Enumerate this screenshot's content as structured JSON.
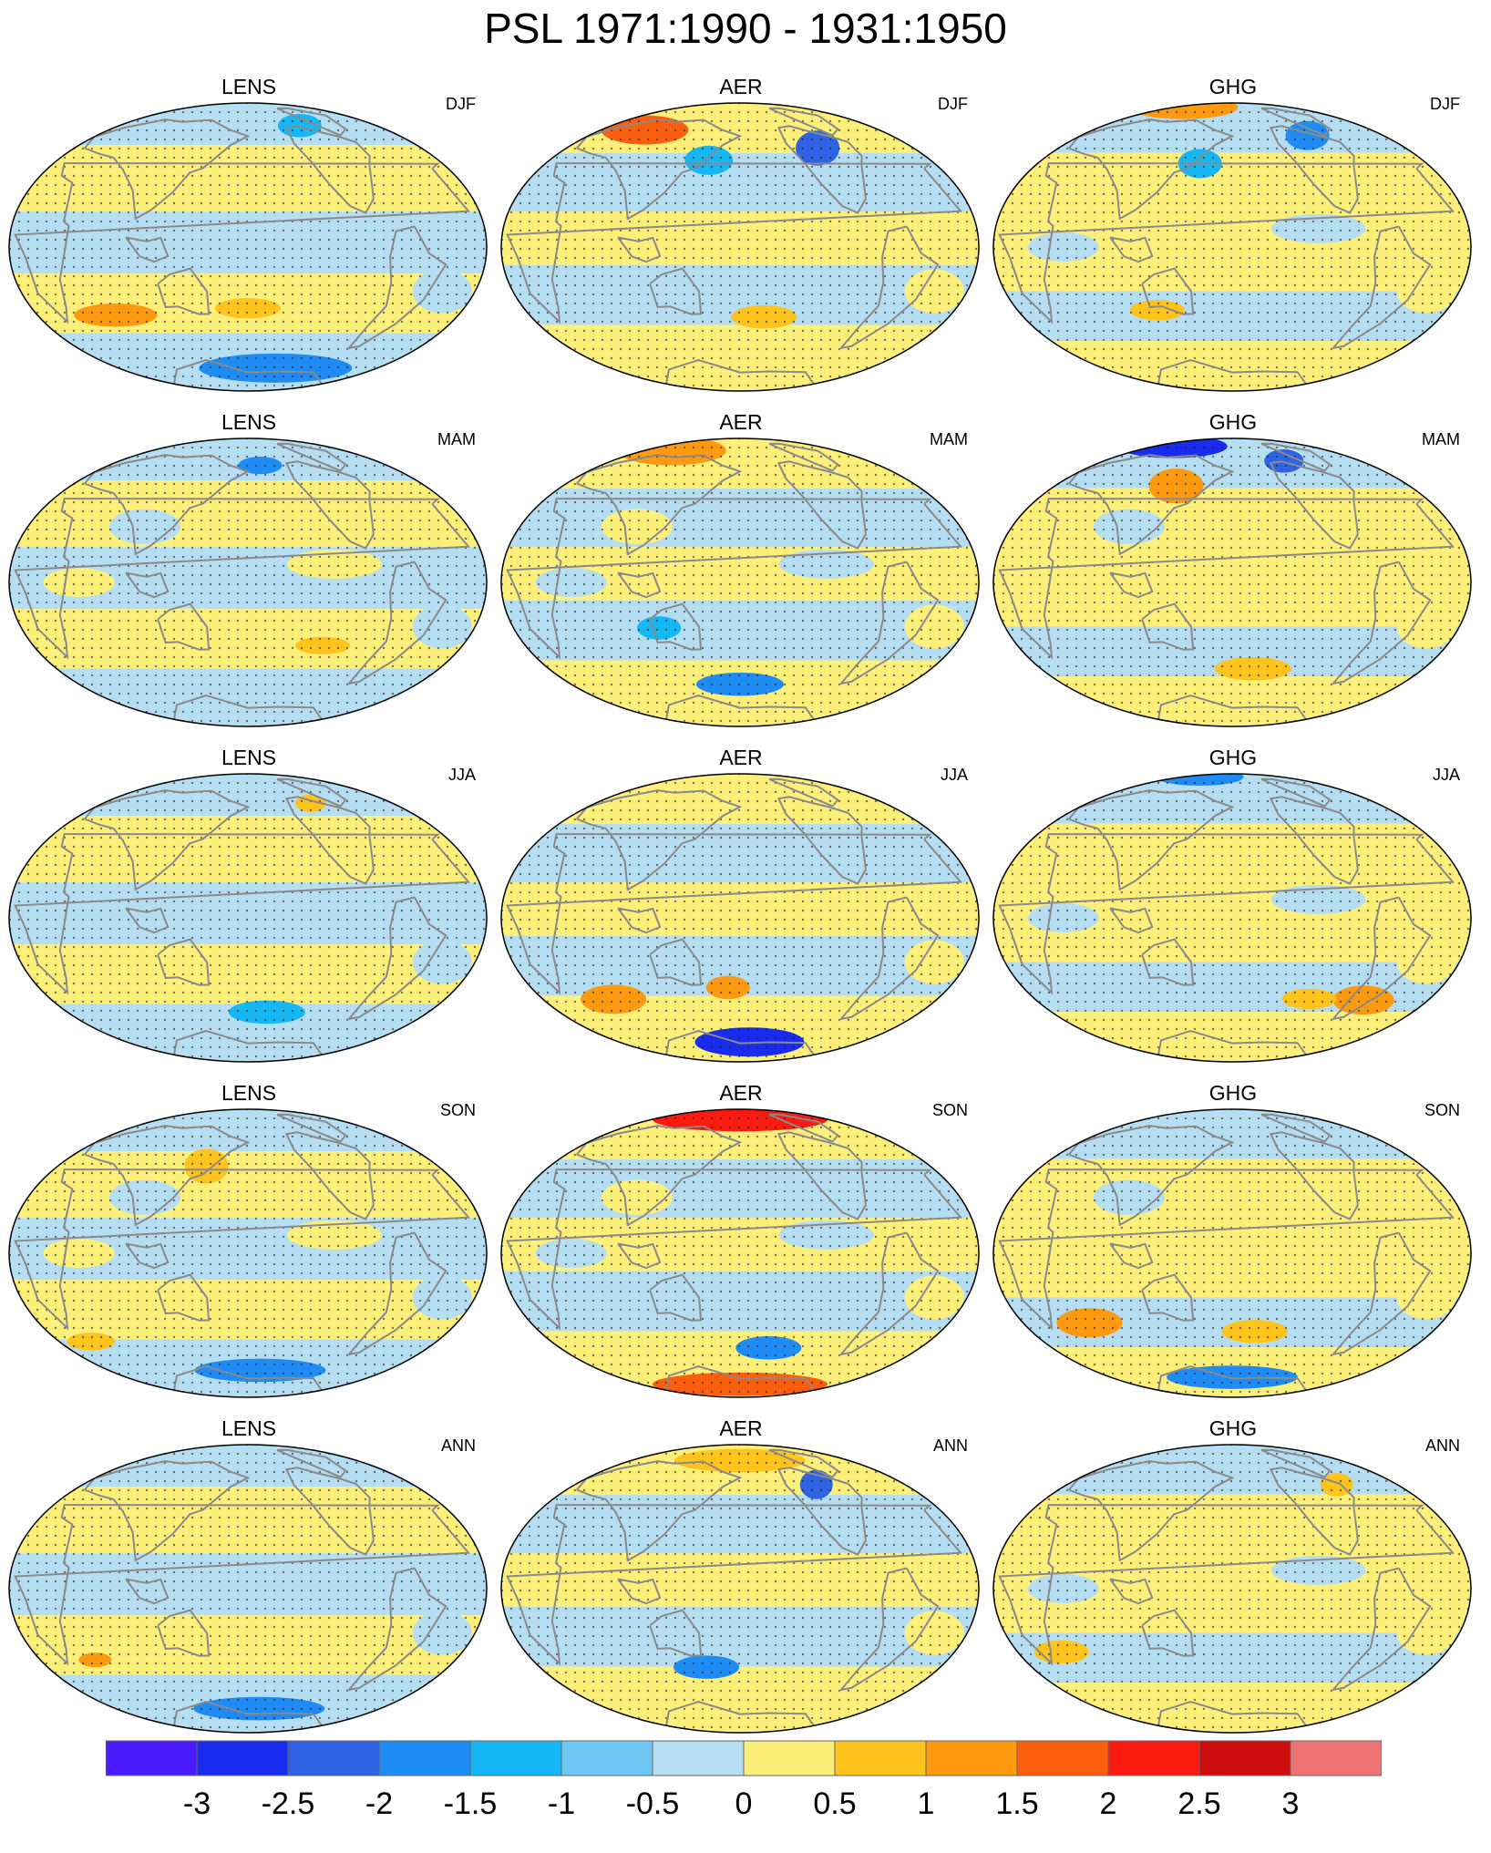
{
  "title": "PSL 1971:1990 - 1931:1950",
  "columns": [
    "LENS",
    "AER",
    "GHG"
  ],
  "seasons": [
    "DJF",
    "MAM",
    "JJA",
    "SON",
    "ANN"
  ],
  "colorbar": {
    "labels": [
      "-3",
      "-2.5",
      "-2",
      "-1.5",
      "-1",
      "-0.5",
      "0",
      "0.5",
      "1",
      "1.5",
      "2",
      "2.5",
      "3"
    ],
    "colors": [
      "#4b1aff",
      "#1a2bf0",
      "#2f63e3",
      "#1e8cf4",
      "#16b7f5",
      "#6ec6f2",
      "#b6def2",
      "#fdf07a",
      "#fec41c",
      "#fd9a10",
      "#fb5e0c",
      "#fb1a10",
      "#cd0d0d",
      "#ee7373"
    ]
  },
  "colors": {
    "coast": "#8a8a8a",
    "border": "#000000",
    "stipple": "#222222",
    "positive": "#fdf07a",
    "negative": "#b6def2"
  },
  "panels": [
    {
      "model": "LENS",
      "season": "DJF"
    },
    {
      "model": "AER",
      "season": "DJF"
    },
    {
      "model": "GHG",
      "season": "DJF"
    },
    {
      "model": "LENS",
      "season": "MAM"
    },
    {
      "model": "AER",
      "season": "MAM"
    },
    {
      "model": "GHG",
      "season": "MAM"
    },
    {
      "model": "LENS",
      "season": "JJA"
    },
    {
      "model": "AER",
      "season": "JJA"
    },
    {
      "model": "GHG",
      "season": "JJA"
    },
    {
      "model": "LENS",
      "season": "SON"
    },
    {
      "model": "AER",
      "season": "SON"
    },
    {
      "model": "GHG",
      "season": "SON"
    },
    {
      "model": "LENS",
      "season": "ANN"
    },
    {
      "model": "AER",
      "season": "ANN"
    },
    {
      "model": "GHG",
      "season": "ANN"
    }
  ]
}
